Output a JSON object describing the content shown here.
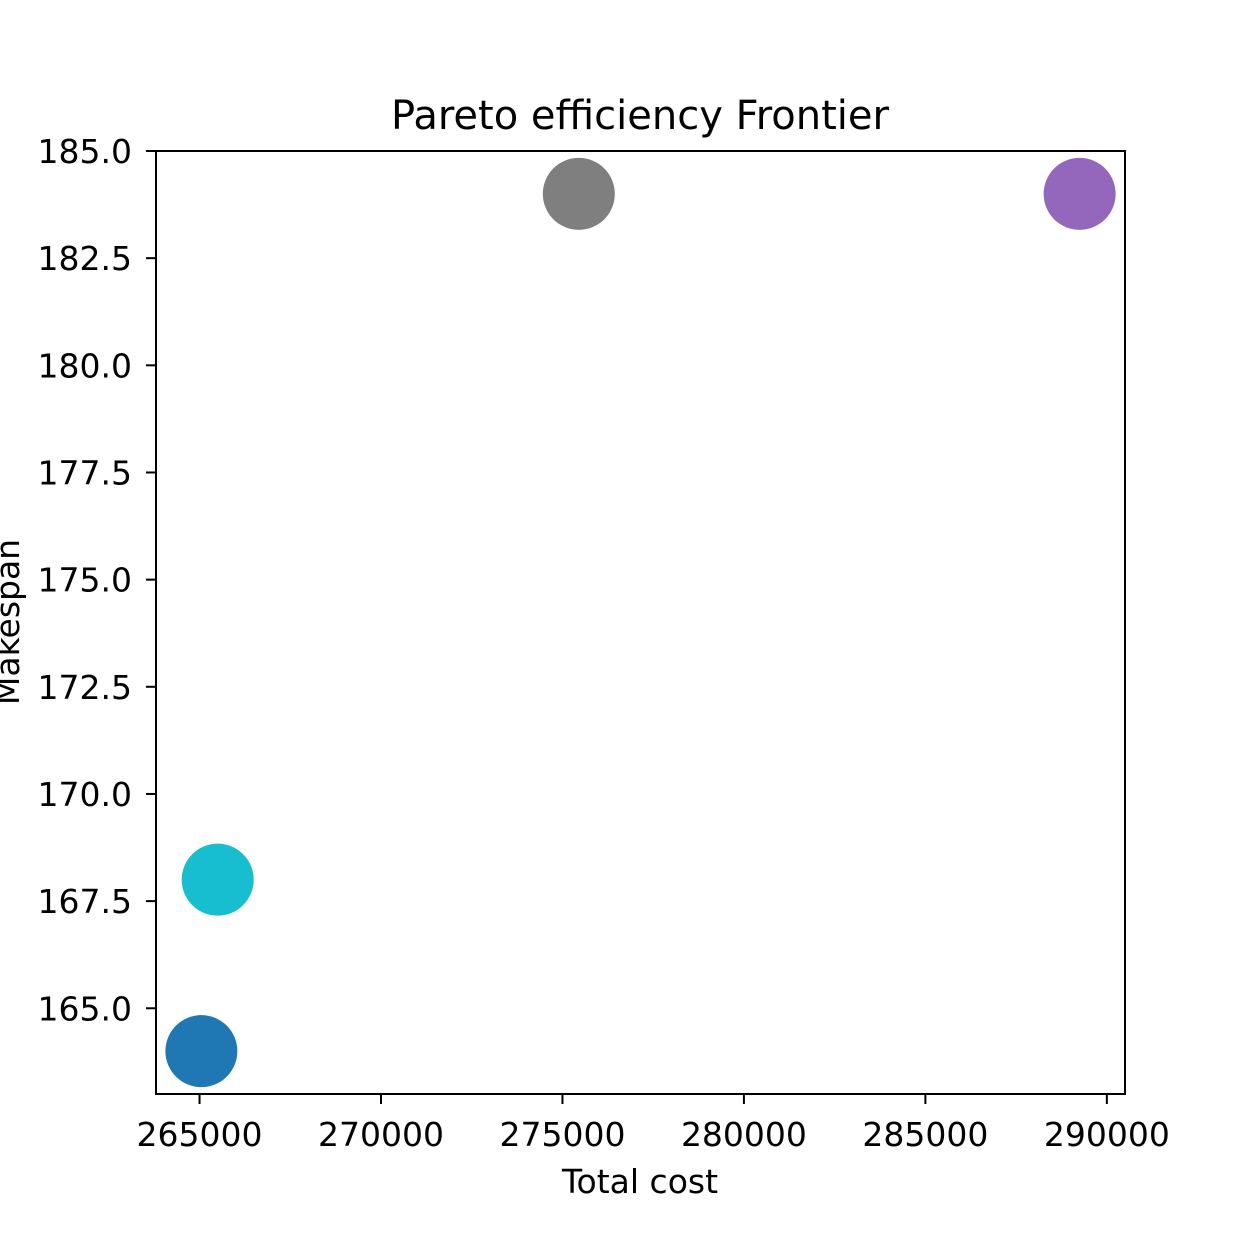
{
  "chart_data": {
    "type": "scatter",
    "title": "Pareto efficiency Frontier",
    "xlabel": "Total cost",
    "ylabel": "Makespan",
    "xlim": [
      263800,
      290500
    ],
    "ylim": [
      163.0,
      185.0
    ],
    "x_ticks": [
      265000,
      270000,
      275000,
      280000,
      285000,
      290000
    ],
    "y_ticks": [
      165.0,
      167.5,
      170.0,
      172.5,
      175.0,
      177.5,
      180.0,
      182.5,
      185.0
    ],
    "x_tick_labels": [
      "265000",
      "270000",
      "275000",
      "280000",
      "285000",
      "290000"
    ],
    "y_tick_labels": [
      "165.0",
      "167.5",
      "170.0",
      "172.5",
      "175.0",
      "177.5",
      "180.0",
      "182.5",
      "185.0"
    ],
    "grid": false,
    "points": [
      {
        "x": 265050,
        "y": 164,
        "color": "#1f77b4"
      },
      {
        "x": 265500,
        "y": 168,
        "color": "#17becf"
      },
      {
        "x": 275450,
        "y": 184,
        "color": "#7f7f7f"
      },
      {
        "x": 289250,
        "y": 184,
        "color": "#9467bd"
      }
    ]
  }
}
